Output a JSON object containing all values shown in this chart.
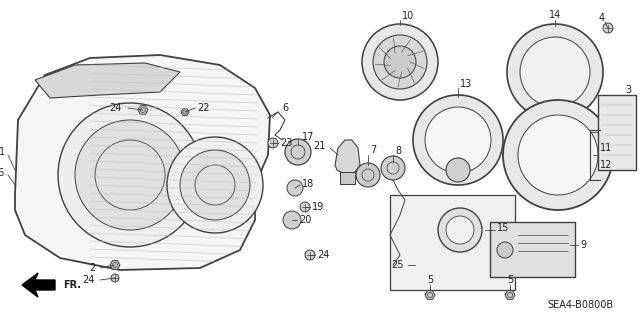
{
  "bg_color": "#ffffff",
  "line_color": "#404040",
  "text_color": "#222222",
  "diagram_code": "SEA4-B0800B",
  "figsize": [
    6.4,
    3.19
  ],
  "dpi": 100
}
